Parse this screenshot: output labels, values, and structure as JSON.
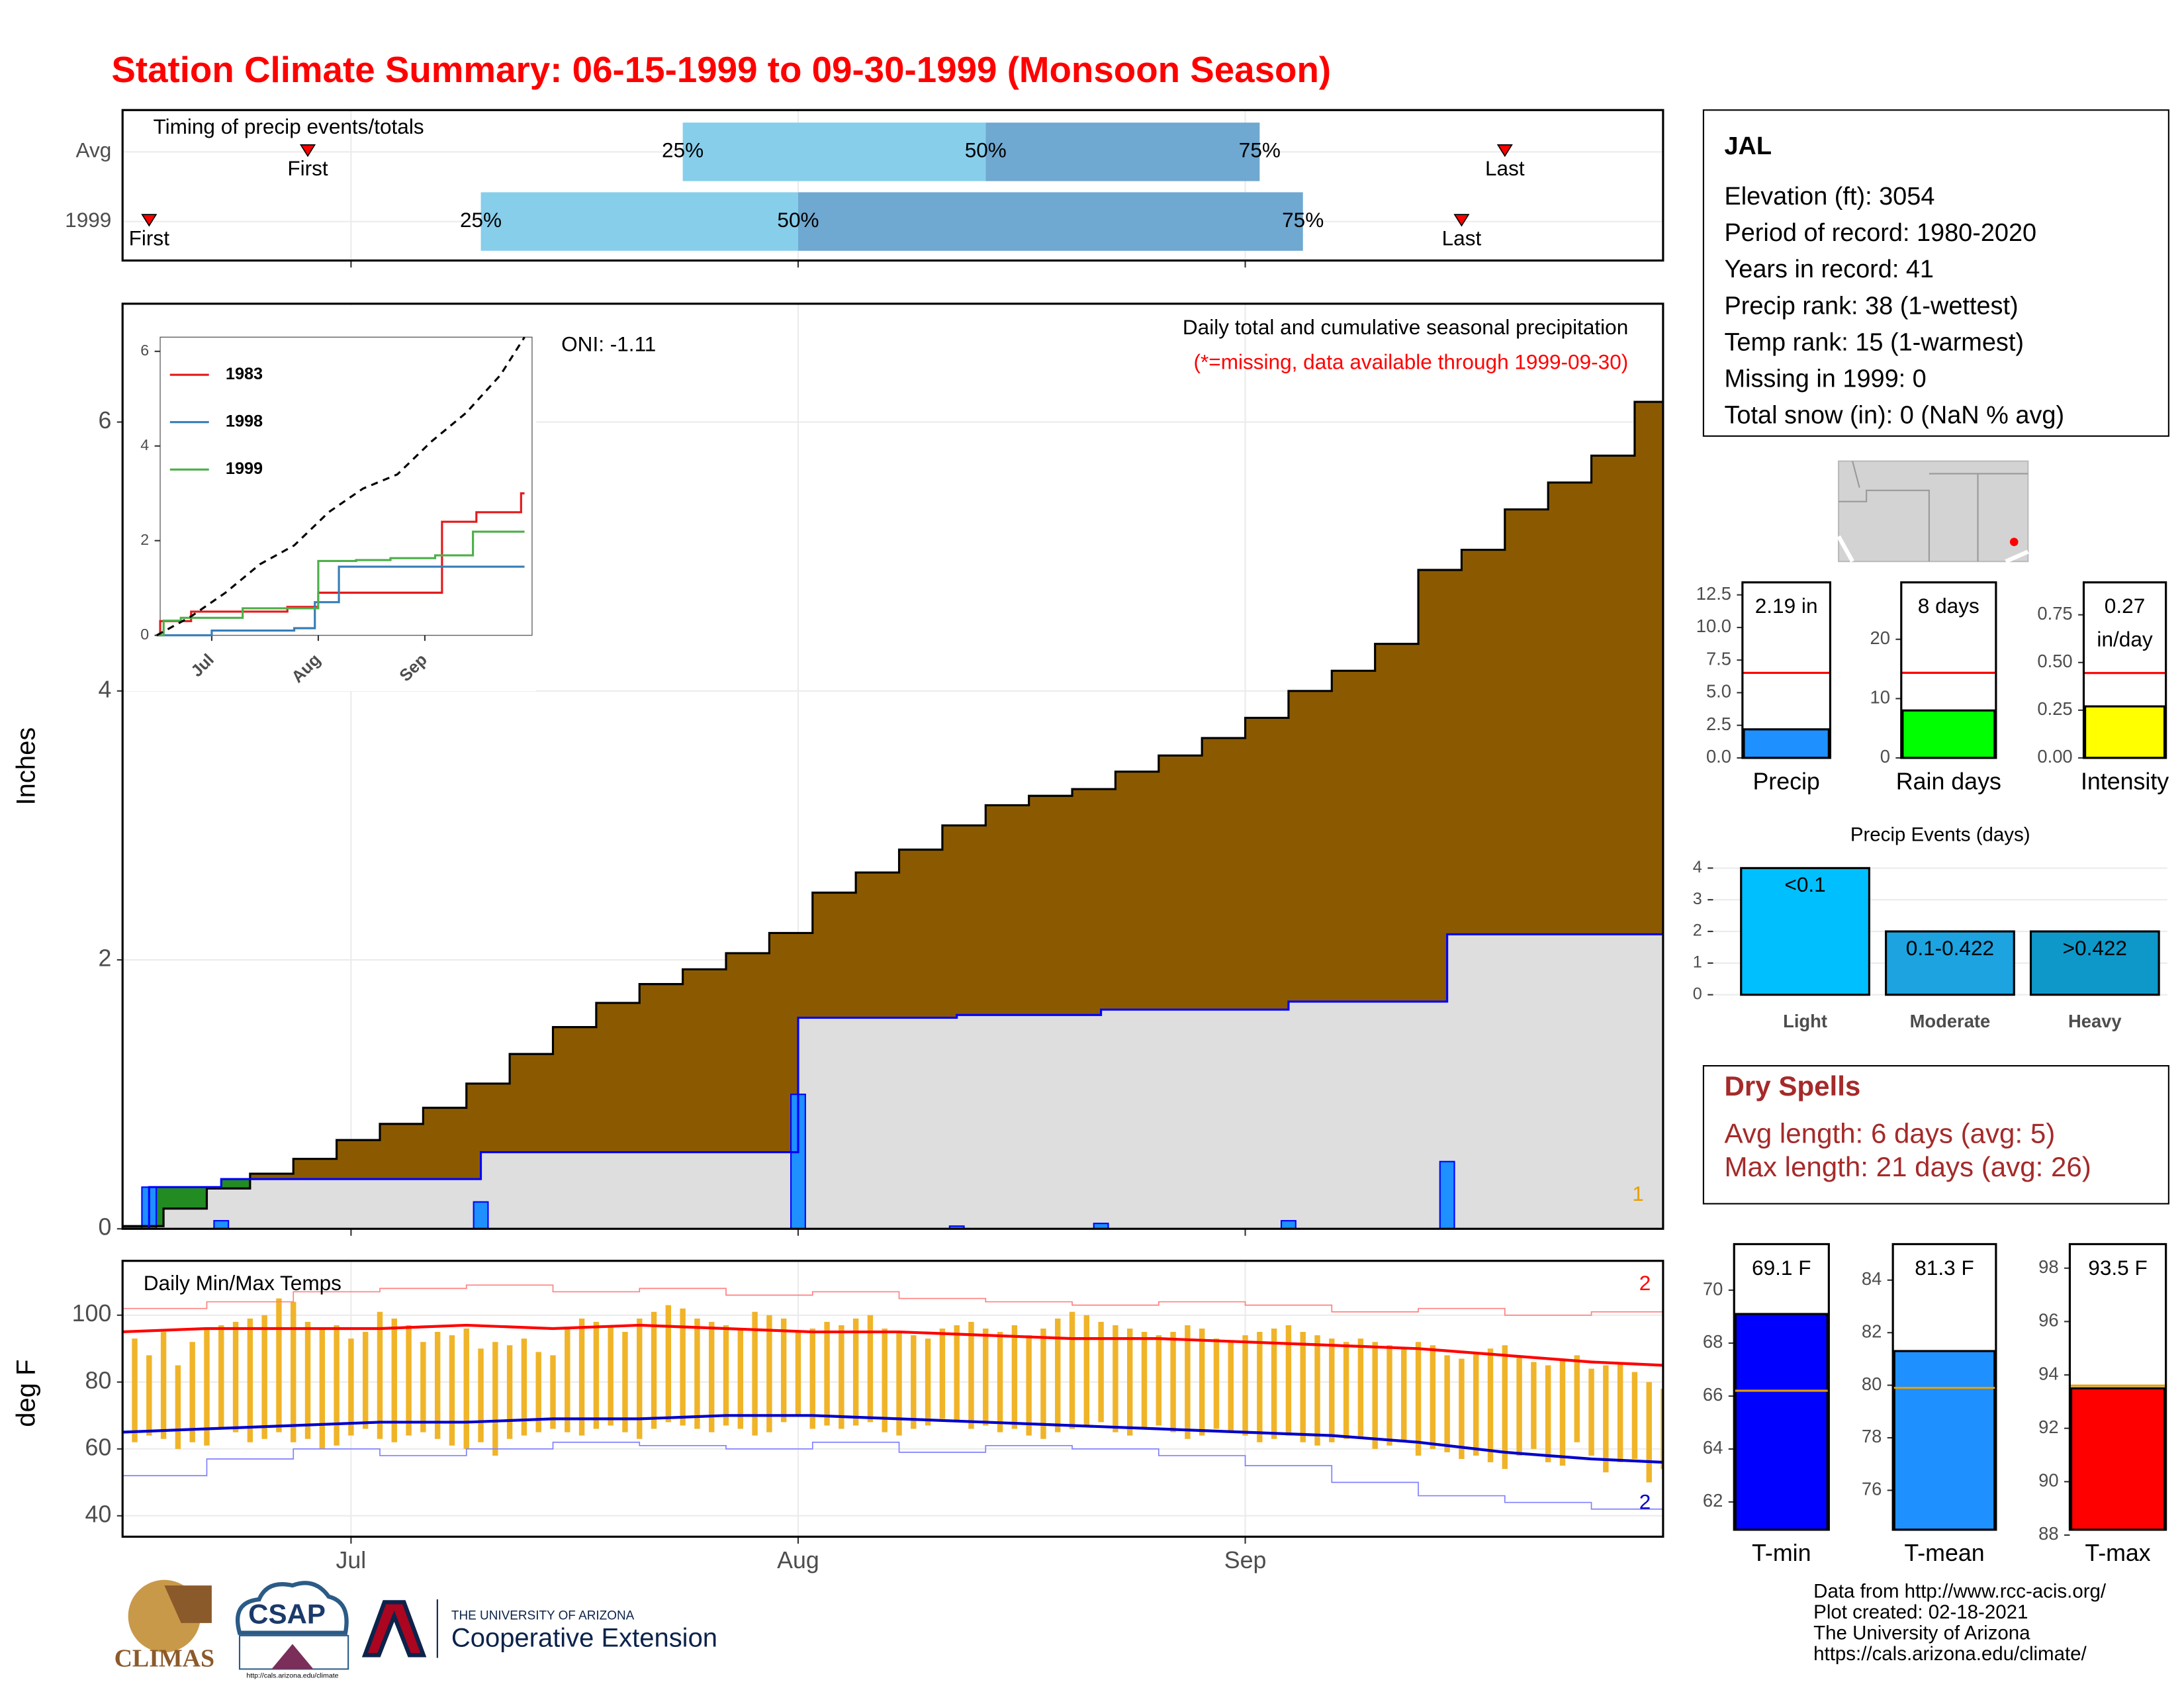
{
  "title": "Station Climate Summary: 06-15-1999 to 09-30-1999 (Monsoon Season)",
  "chart_data": [
    {
      "type": "timing",
      "title": "Timing of precip events/totals",
      "xlim": [
        0.16,
        106.97
      ],
      "xticks": [
        16,
        47,
        78
      ],
      "grid": true,
      "quartile_colors": [
        "#87ceeb",
        "#6fa8d0"
      ],
      "marker_color": "#ff0000",
      "events": [
        {
          "name": "Avg",
          "markers": [
            {
              "label": "First",
              "value": 13
            },
            {
              "label": "Last",
              "value": 96
            }
          ],
          "quartiles": [
            {
              "label": "25%",
              "value": 39
            },
            {
              "label": "50%",
              "value": 60
            },
            {
              "label": "75%",
              "value": 79
            }
          ]
        },
        {
          "name": "1999",
          "markers": [
            {
              "label": "First",
              "value": 2
            },
            {
              "label": "Last",
              "value": 93
            }
          ],
          "quartiles": [
            {
              "label": "25%",
              "value": 25
            },
            {
              "label": "50%",
              "value": 47
            },
            {
              "label": "75%",
              "value": 82
            }
          ]
        }
      ]
    },
    {
      "type": "cumulative",
      "ylabel": "Inches",
      "subtitle": "Daily total and cumulative seasonal precipitation",
      "note": "(*=missing, data available through 1999-09-30)",
      "oni": "ONI: -1.11",
      "corner_label": "1",
      "xlim": [
        0.16,
        106.97
      ],
      "xticks": [
        16,
        47,
        78
      ],
      "ylim": [
        0,
        6.88
      ],
      "yticks": [
        0,
        2,
        4,
        6
      ],
      "grid": true,
      "series": [
        {
          "kind": "area",
          "color": "#000000",
          "fill": "#8b5a00",
          "x": [
            0,
            3,
            6,
            9,
            12,
            15,
            18,
            21,
            24,
            27,
            30,
            33,
            36,
            39,
            42,
            45,
            48,
            51,
            54,
            57,
            60,
            63,
            66,
            69,
            72,
            75,
            78,
            81,
            84,
            87,
            90,
            93,
            96,
            99,
            102,
            105,
            107
          ],
          "values": [
            0.02,
            0.15,
            0.3,
            0.41,
            0.52,
            0.66,
            0.78,
            0.9,
            1.08,
            1.3,
            1.5,
            1.68,
            1.82,
            1.93,
            2.05,
            2.2,
            2.5,
            2.65,
            2.82,
            3.0,
            3.15,
            3.22,
            3.27,
            3.4,
            3.52,
            3.65,
            3.8,
            4.0,
            4.15,
            4.35,
            4.9,
            5.05,
            5.35,
            5.55,
            5.75,
            6.15,
            6.26
          ]
        },
        {
          "kind": "area",
          "color": "#0000ff",
          "fill": "#dedede",
          "above_fill": "#228b22",
          "x": [
            0,
            2,
            7,
            25,
            47,
            58,
            68,
            81,
            92,
            107
          ],
          "values": [
            0,
            0.31,
            0.37,
            0.57,
            1.57,
            1.59,
            1.63,
            1.69,
            2.19,
            2.19
          ]
        },
        {
          "kind": "bar",
          "color": "#0000ff",
          "fill": "#1e90ff",
          "x": [
            2,
            7,
            25,
            47,
            58,
            68,
            81,
            92
          ],
          "values": [
            0.31,
            0.06,
            0.2,
            1.0,
            0.02,
            0.04,
            0.06,
            0.5
          ]
        }
      ]
    },
    {
      "type": "line",
      "xlim": [
        1,
        109.2
      ],
      "ylim": [
        0,
        6.3
      ],
      "yticks": [
        0,
        2,
        4,
        6
      ],
      "xticks": [
        {
          "value": 16,
          "label": "Jul"
        },
        {
          "value": 47,
          "label": "Aug"
        },
        {
          "value": 78,
          "label": "Sep"
        }
      ],
      "series": [
        {
          "name": "1983",
          "color": "#e41a1c",
          "x": [
            0,
            1,
            10,
            38,
            47,
            83,
            93,
            106,
            107
          ],
          "values": [
            0,
            0.3,
            0.5,
            0.6,
            0.9,
            2.4,
            2.6,
            3.0,
            3.0
          ]
        },
        {
          "name": "1998",
          "color": "#377eb8",
          "x": [
            0,
            16,
            40,
            46,
            53,
            107
          ],
          "values": [
            0,
            0.1,
            0.15,
            0.7,
            1.45,
            1.45
          ]
        },
        {
          "name": "1999",
          "color": "#4daf4a",
          "x": [
            0,
            2,
            7,
            25,
            47,
            58,
            68,
            81,
            92,
            107
          ],
          "values": [
            0,
            0.31,
            0.37,
            0.57,
            1.57,
            1.59,
            1.63,
            1.69,
            2.19,
            2.19
          ]
        },
        {
          "color": "#000000",
          "dash": true,
          "x": [
            0,
            10,
            20,
            30,
            40,
            50,
            60,
            70,
            80,
            90,
            100,
            107
          ],
          "values": [
            0,
            0.4,
            0.9,
            1.5,
            1.9,
            2.6,
            3.1,
            3.4,
            4.1,
            4.7,
            5.5,
            6.3
          ]
        }
      ]
    },
    {
      "type": "temps",
      "title": "Daily Min/Max Temps",
      "ylabel": "deg F",
      "high_label": "2",
      "low_label": "2",
      "xlim": [
        0.16,
        106.97
      ],
      "ylim": [
        33.75,
        116.25
      ],
      "yticks": [
        40,
        60,
        80,
        100
      ],
      "grid": true,
      "xticks": [
        {
          "value": 16,
          "label": "Jul"
        },
        {
          "value": 47,
          "label": "Aug"
        },
        {
          "value": 78,
          "label": "Sep"
        }
      ],
      "bar_color": "#f0b429",
      "x": [
        0,
        1,
        2,
        3,
        4,
        5,
        6,
        7,
        8,
        9,
        10,
        11,
        12,
        13,
        14,
        15,
        16,
        17,
        18,
        19,
        20,
        21,
        22,
        23,
        24,
        25,
        26,
        27,
        28,
        29,
        30,
        31,
        32,
        33,
        34,
        35,
        36,
        37,
        38,
        39,
        40,
        41,
        42,
        43,
        44,
        45,
        46,
        47,
        48,
        49,
        50,
        51,
        52,
        53,
        54,
        55,
        56,
        57,
        58,
        59,
        60,
        61,
        62,
        63,
        64,
        65,
        66,
        67,
        68,
        69,
        70,
        71,
        72,
        73,
        74,
        75,
        76,
        77,
        78,
        79,
        80,
        81,
        82,
        83,
        84,
        85,
        86,
        87,
        88,
        89,
        90,
        91,
        92,
        93,
        94,
        95,
        96,
        97,
        98,
        99,
        100,
        101,
        102,
        103,
        104,
        105,
        106,
        107
      ],
      "tmax": [
        92,
        93,
        88,
        95,
        85,
        92,
        96,
        97,
        98,
        99,
        100,
        105,
        104,
        98,
        96,
        97,
        93,
        95,
        101,
        99,
        97,
        92,
        95,
        94,
        96,
        90,
        92,
        91,
        93,
        89,
        88,
        96,
        99,
        98,
        97,
        95,
        99,
        101,
        103,
        102,
        99,
        98,
        97,
        96,
        101,
        100,
        99,
        95,
        96,
        98,
        97,
        99,
        100,
        96,
        95,
        94,
        93,
        96,
        97,
        98,
        96,
        95,
        97,
        94,
        96,
        99,
        101,
        100,
        98,
        97,
        96,
        95,
        94,
        95,
        97,
        96,
        93,
        92,
        94,
        95,
        96,
        97,
        95,
        94,
        93,
        92,
        93,
        92,
        91,
        90,
        92,
        91,
        88,
        87,
        89,
        90,
        91,
        88,
        86,
        85,
        87,
        88,
        84,
        85,
        86,
        83,
        80,
        78
      ],
      "tmin": [
        57,
        62,
        64,
        63,
        60,
        62,
        61,
        66,
        65,
        62,
        63,
        65,
        62,
        63,
        60,
        61,
        64,
        66,
        63,
        62,
        64,
        65,
        63,
        61,
        60,
        62,
        58,
        63,
        64,
        65,
        66,
        65,
        64,
        66,
        67,
        65,
        63,
        66,
        68,
        67,
        66,
        65,
        67,
        66,
        64,
        65,
        68,
        70,
        66,
        67,
        66,
        67,
        68,
        65,
        64,
        66,
        67,
        69,
        68,
        66,
        67,
        65,
        66,
        64,
        63,
        65,
        66,
        67,
        68,
        65,
        64,
        66,
        67,
        65,
        63,
        64,
        66,
        65,
        64,
        62,
        63,
        64,
        62,
        61,
        62,
        63,
        63,
        60,
        61,
        62,
        58,
        60,
        59,
        57,
        58,
        56,
        54,
        58,
        60,
        56,
        55,
        62,
        58,
        53,
        56,
        57,
        50,
        54
      ],
      "series": [
        {
          "color": "#ff0000",
          "width": 2,
          "step": false,
          "x": [
            0,
            6,
            12,
            18,
            24,
            30,
            36,
            42,
            48,
            54,
            60,
            66,
            72,
            78,
            84,
            90,
            96,
            102,
            107
          ],
          "values": [
            95,
            96,
            96,
            96,
            97,
            96,
            97,
            96,
            95,
            95,
            94,
            93,
            93,
            92,
            91,
            90,
            88,
            86,
            85
          ]
        },
        {
          "color": "#0000cc",
          "width": 2,
          "step": false,
          "x": [
            0,
            6,
            12,
            18,
            24,
            30,
            36,
            42,
            48,
            54,
            60,
            66,
            72,
            78,
            84,
            90,
            96,
            102,
            107
          ],
          "values": [
            65,
            66,
            67,
            68,
            68,
            69,
            69,
            70,
            70,
            69,
            68,
            67,
            66,
            65,
            64,
            62,
            59,
            57,
            56
          ]
        },
        {
          "color": "#ff8080",
          "width": 0.8,
          "step": true,
          "x": [
            0,
            6,
            12,
            18,
            24,
            30,
            36,
            42,
            48,
            54,
            60,
            66,
            72,
            78,
            84,
            90,
            96,
            102,
            107
          ],
          "values": [
            102,
            104,
            107,
            108,
            109,
            107,
            108,
            106,
            107,
            105,
            104,
            103,
            104,
            103,
            101,
            102,
            100,
            101,
            99
          ]
        },
        {
          "color": "#8080ff",
          "width": 0.8,
          "step": true,
          "x": [
            0,
            6,
            12,
            18,
            24,
            30,
            36,
            42,
            48,
            54,
            60,
            66,
            72,
            78,
            84,
            90,
            96,
            102,
            107
          ],
          "values": [
            52,
            57,
            60,
            58,
            60,
            62,
            61,
            60,
            62,
            59,
            61,
            60,
            58,
            55,
            50,
            46,
            44,
            42,
            40
          ]
        }
      ]
    },
    {
      "type": "summary-bar",
      "xlabel": "Precip",
      "values": [
        2.19
      ],
      "value_labels": [
        "2.19 in"
      ],
      "color": "#1e90ff",
      "reference": 6.52,
      "reference_color": "#ff0000",
      "ylim": [
        0,
        13.46
      ],
      "yticks": [
        {
          "value": 0,
          "label": "0.0"
        },
        2.5,
        {
          "value": 5,
          "label": "5.0"
        },
        7.5,
        {
          "value": 10,
          "label": "10.0"
        },
        12.5
      ]
    },
    {
      "type": "summary-bar",
      "xlabel": "Rain days",
      "values": [
        8
      ],
      "value_labels": [
        "8 days"
      ],
      "color": "#00ff00",
      "reference": 14.35,
      "reference_color": "#ff0000",
      "ylim": [
        0,
        29.6
      ],
      "yticks": [
        0,
        10,
        20
      ]
    },
    {
      "type": "summary-bar",
      "xlabel": "Intensity",
      "values": [
        0.27
      ],
      "value_labels": [
        "0.27 in/day"
      ],
      "color": "#ffff00",
      "reference": 0.445,
      "reference_color": "#ff0000",
      "ylim": [
        0,
        0.92
      ],
      "yticks": [
        {
          "value": 0,
          "label": "0.00"
        },
        0.25,
        {
          "value": 0.5,
          "label": "0.50"
        },
        0.75
      ]
    },
    {
      "type": "bar",
      "title": "Precip Events (days)",
      "categories": [
        "Light",
        "Moderate",
        "Heavy"
      ],
      "values": [
        4,
        2,
        2
      ],
      "bar_labels": [
        "<0.1",
        "0.1-0.422",
        ">0.422"
      ],
      "colors": [
        "#00bfff",
        "#1ca3e0",
        "#0d98c9"
      ],
      "ylim": [
        0,
        4.18
      ],
      "yticks": [
        0,
        1,
        2,
        3,
        4
      ],
      "grid": true
    },
    {
      "type": "summary-bar",
      "xlabel": "T-min",
      "values": [
        69.1
      ],
      "value_labels": [
        "69.1 F"
      ],
      "color": "#0000ff",
      "reference": 66.2,
      "reference_color": "#e69f00",
      "ylim": [
        60.95,
        71.74
      ],
      "yticks": [
        62,
        64,
        66,
        68,
        70
      ]
    },
    {
      "type": "summary-bar",
      "xlabel": "T-mean",
      "values": [
        81.3
      ],
      "value_labels": [
        "81.3 F"
      ],
      "color": "#1e90ff",
      "reference": 79.9,
      "reference_color": "#e69f00",
      "ylim": [
        74.5,
        85.37
      ],
      "yticks": [
        76,
        78,
        80,
        82,
        84
      ]
    },
    {
      "type": "summary-bar",
      "xlabel": "T-max",
      "values": [
        93.5
      ],
      "value_labels": [
        "93.5 F"
      ],
      "color": "#ff0000",
      "reference": 93.6,
      "reference_color": "#e69f00",
      "ylim": [
        88.2,
        98.9
      ],
      "yticks": [
        88,
        90,
        92,
        94,
        96,
        98
      ]
    }
  ],
  "info": {
    "station": "JAL",
    "lines": [
      "Elevation (ft): 3054",
      "Period of record: 1980-2020",
      "Years in record: 41",
      "Precip rank: 38 (1-wettest)",
      "Temp rank: 15 (1-warmest)",
      "Missing in 1999: 0",
      "Total snow (in): 0 (NaN % avg)"
    ]
  },
  "dry_spells": {
    "title": "Dry Spells",
    "lines": [
      "Avg length: 6 days (avg: 5)",
      "Max length: 21 days (avg: 26)"
    ]
  },
  "footer": {
    "lines": [
      "Data from http://www.rcc-acis.org/",
      "Plot created: 02-18-2021",
      "The University of Arizona",
      "https://cals.arizona.edu/climate/"
    ]
  },
  "logos": {
    "climas": "CLIMAS",
    "csap": "CSAP",
    "csap_url": "http://cals.arizona.edu/climate",
    "ua": "THE UNIVERSITY OF ARIZONA",
    "coop": "Cooperative Extension"
  }
}
